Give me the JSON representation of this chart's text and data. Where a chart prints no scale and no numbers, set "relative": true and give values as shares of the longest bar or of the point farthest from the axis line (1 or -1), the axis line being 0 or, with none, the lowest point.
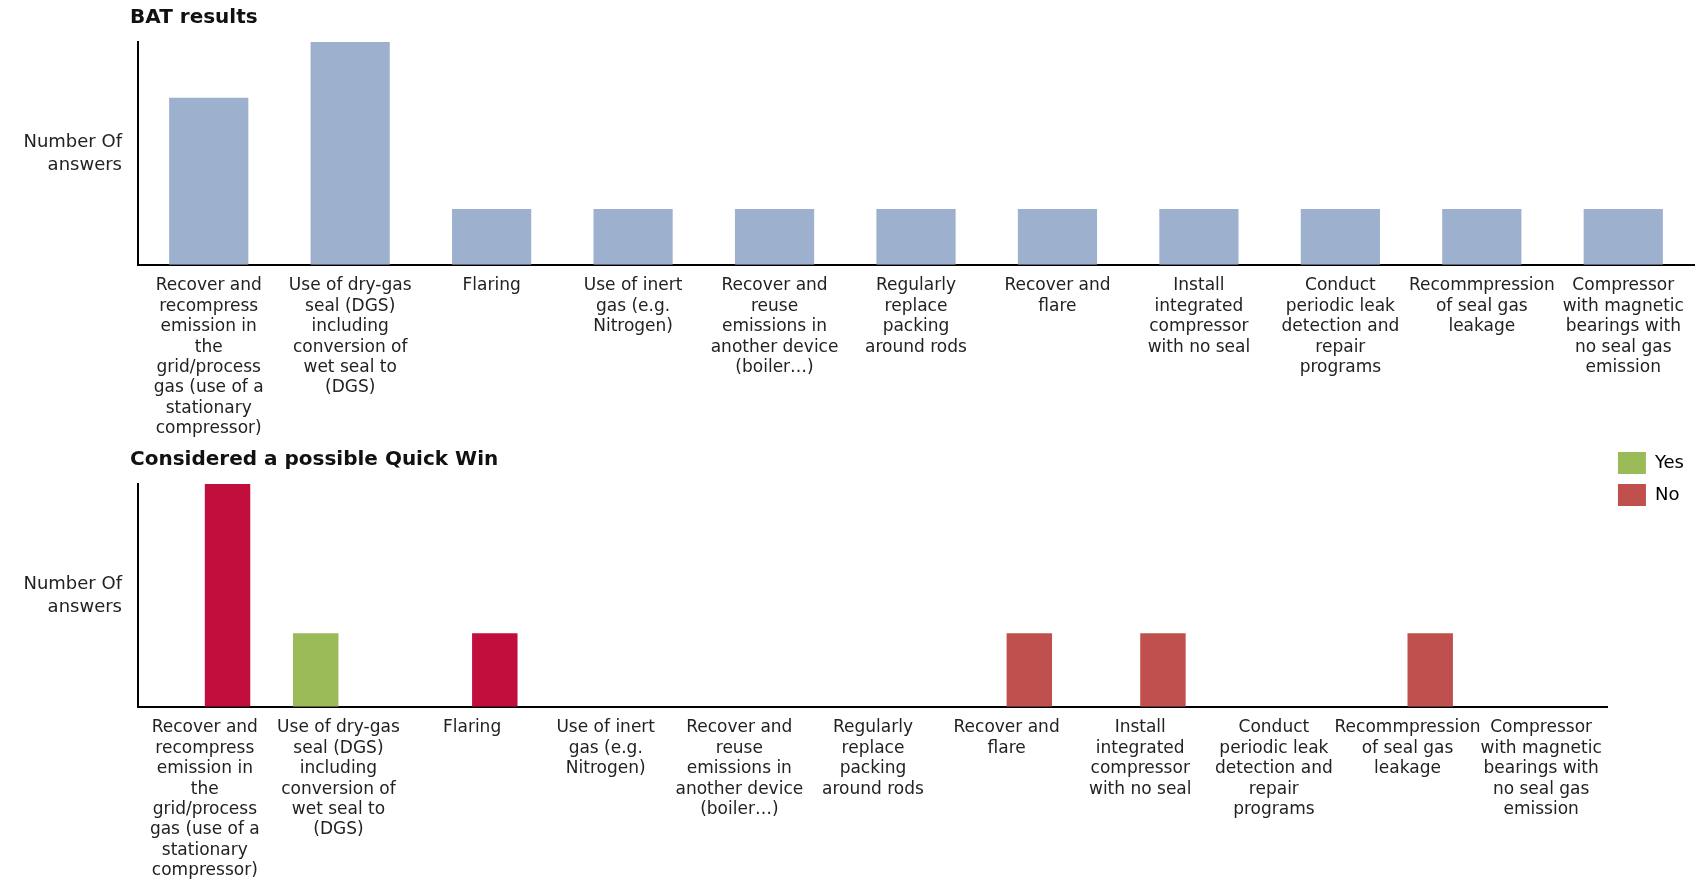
{
  "chart_data": [
    {
      "type": "bar",
      "title": "BAT results",
      "ylabel": "Number Of answers",
      "relative": true,
      "legend": false,
      "categories": [
        "Recover and recompress emission in the grid/process gas (use of a stationary compressor)",
        "Use of dry-gas seal (DGS) including conversion of wet seal to (DGS)",
        "Flaring",
        "Use of inert gas (e.g. Nitrogen)",
        "Recover and reuse emissions in another device (boiler…)",
        "Regularly replace packing around rods",
        "Recover and flare",
        "Install integrated compressor with no seal",
        "Conduct periodic leak detection and repair programs",
        "Recommpression of seal gas leakage",
        "Compressor with magnetic bearings with no seal gas emission"
      ],
      "values": [
        0.75,
        1,
        0.25,
        0.25,
        0.25,
        0.25,
        0.25,
        0.25,
        0.25,
        0.25,
        0.25
      ],
      "color": "#9db0ce"
    },
    {
      "type": "bar",
      "title": "Considered a possible Quick Win",
      "ylabel": "Number Of answers",
      "relative": true,
      "legend": "top right",
      "categories": [
        "Recover and recompress emission in the grid/process gas (use of a stationary compressor)",
        "Use of dry-gas seal (DGS) including conversion of wet seal to (DGS)",
        "Flaring",
        "Use of inert gas (e.g. Nitrogen)",
        "Recover and reuse emissions in another device (boiler…)",
        "Regularly replace packing around rods",
        "Recover and flare",
        "Install integrated compressor with no seal",
        "Conduct periodic leak detection and repair programs",
        "Recommpression of seal gas leakage",
        "Compressor with magnetic bearings with no seal gas emission"
      ],
      "series": [
        {
          "name": "Yes",
          "color": "#9bbb59",
          "values": [
            null,
            0.33,
            null,
            null,
            null,
            null,
            null,
            null,
            null,
            null,
            null
          ]
        },
        {
          "name": "No",
          "color": "#c0504d",
          "colors": [
            "#c20e3d",
            null,
            "#c20e3d",
            null,
            null,
            null,
            "#c0504d",
            "#c0504d",
            null,
            "#c0504d",
            null
          ],
          "values": [
            1,
            null,
            0.33,
            null,
            null,
            null,
            0.33,
            0.33,
            null,
            0.33,
            null
          ]
        }
      ]
    }
  ]
}
